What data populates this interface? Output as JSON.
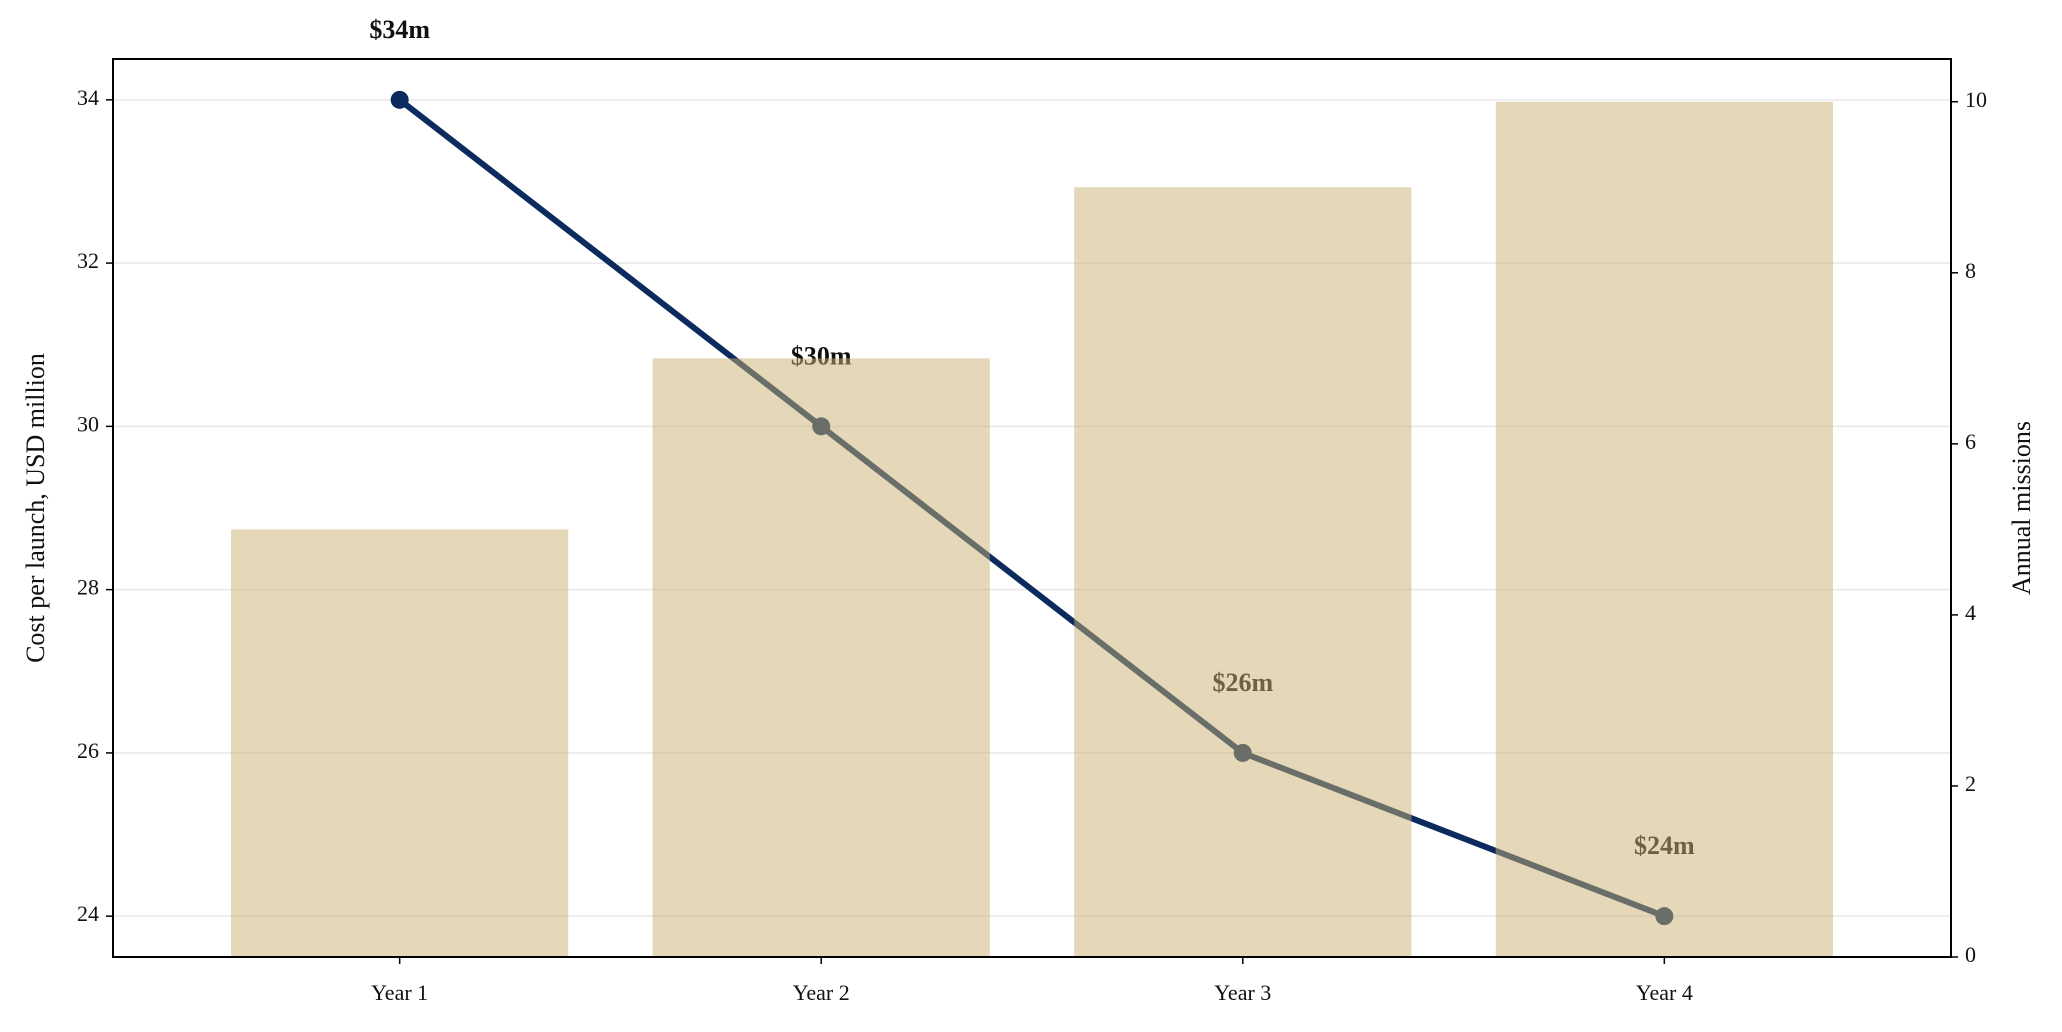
{
  "chart_data": {
    "type": "combo",
    "categories": [
      "Year 1",
      "Year 2",
      "Year 3",
      "Year 4"
    ],
    "ylabel": "Cost per launch, USD million",
    "y2label": "Annual missions",
    "ylim": [
      23.5,
      34.5
    ],
    "yticks": [
      24,
      26,
      28,
      30,
      32,
      34
    ],
    "y2lim": [
      0,
      10.5
    ],
    "y2ticks": [
      0,
      2,
      4,
      6,
      8,
      10
    ],
    "grid": true,
    "series": [
      {
        "type": "bar",
        "axis": "y2",
        "color": "#c9b271",
        "values": [
          5,
          7,
          9,
          10
        ]
      },
      {
        "type": "line",
        "axis": "y",
        "color": "#0b2a5e",
        "values": [
          34,
          30,
          26,
          24
        ],
        "value_labels": [
          "$34m",
          "$30m",
          "$26m",
          "$24m"
        ]
      }
    ]
  }
}
